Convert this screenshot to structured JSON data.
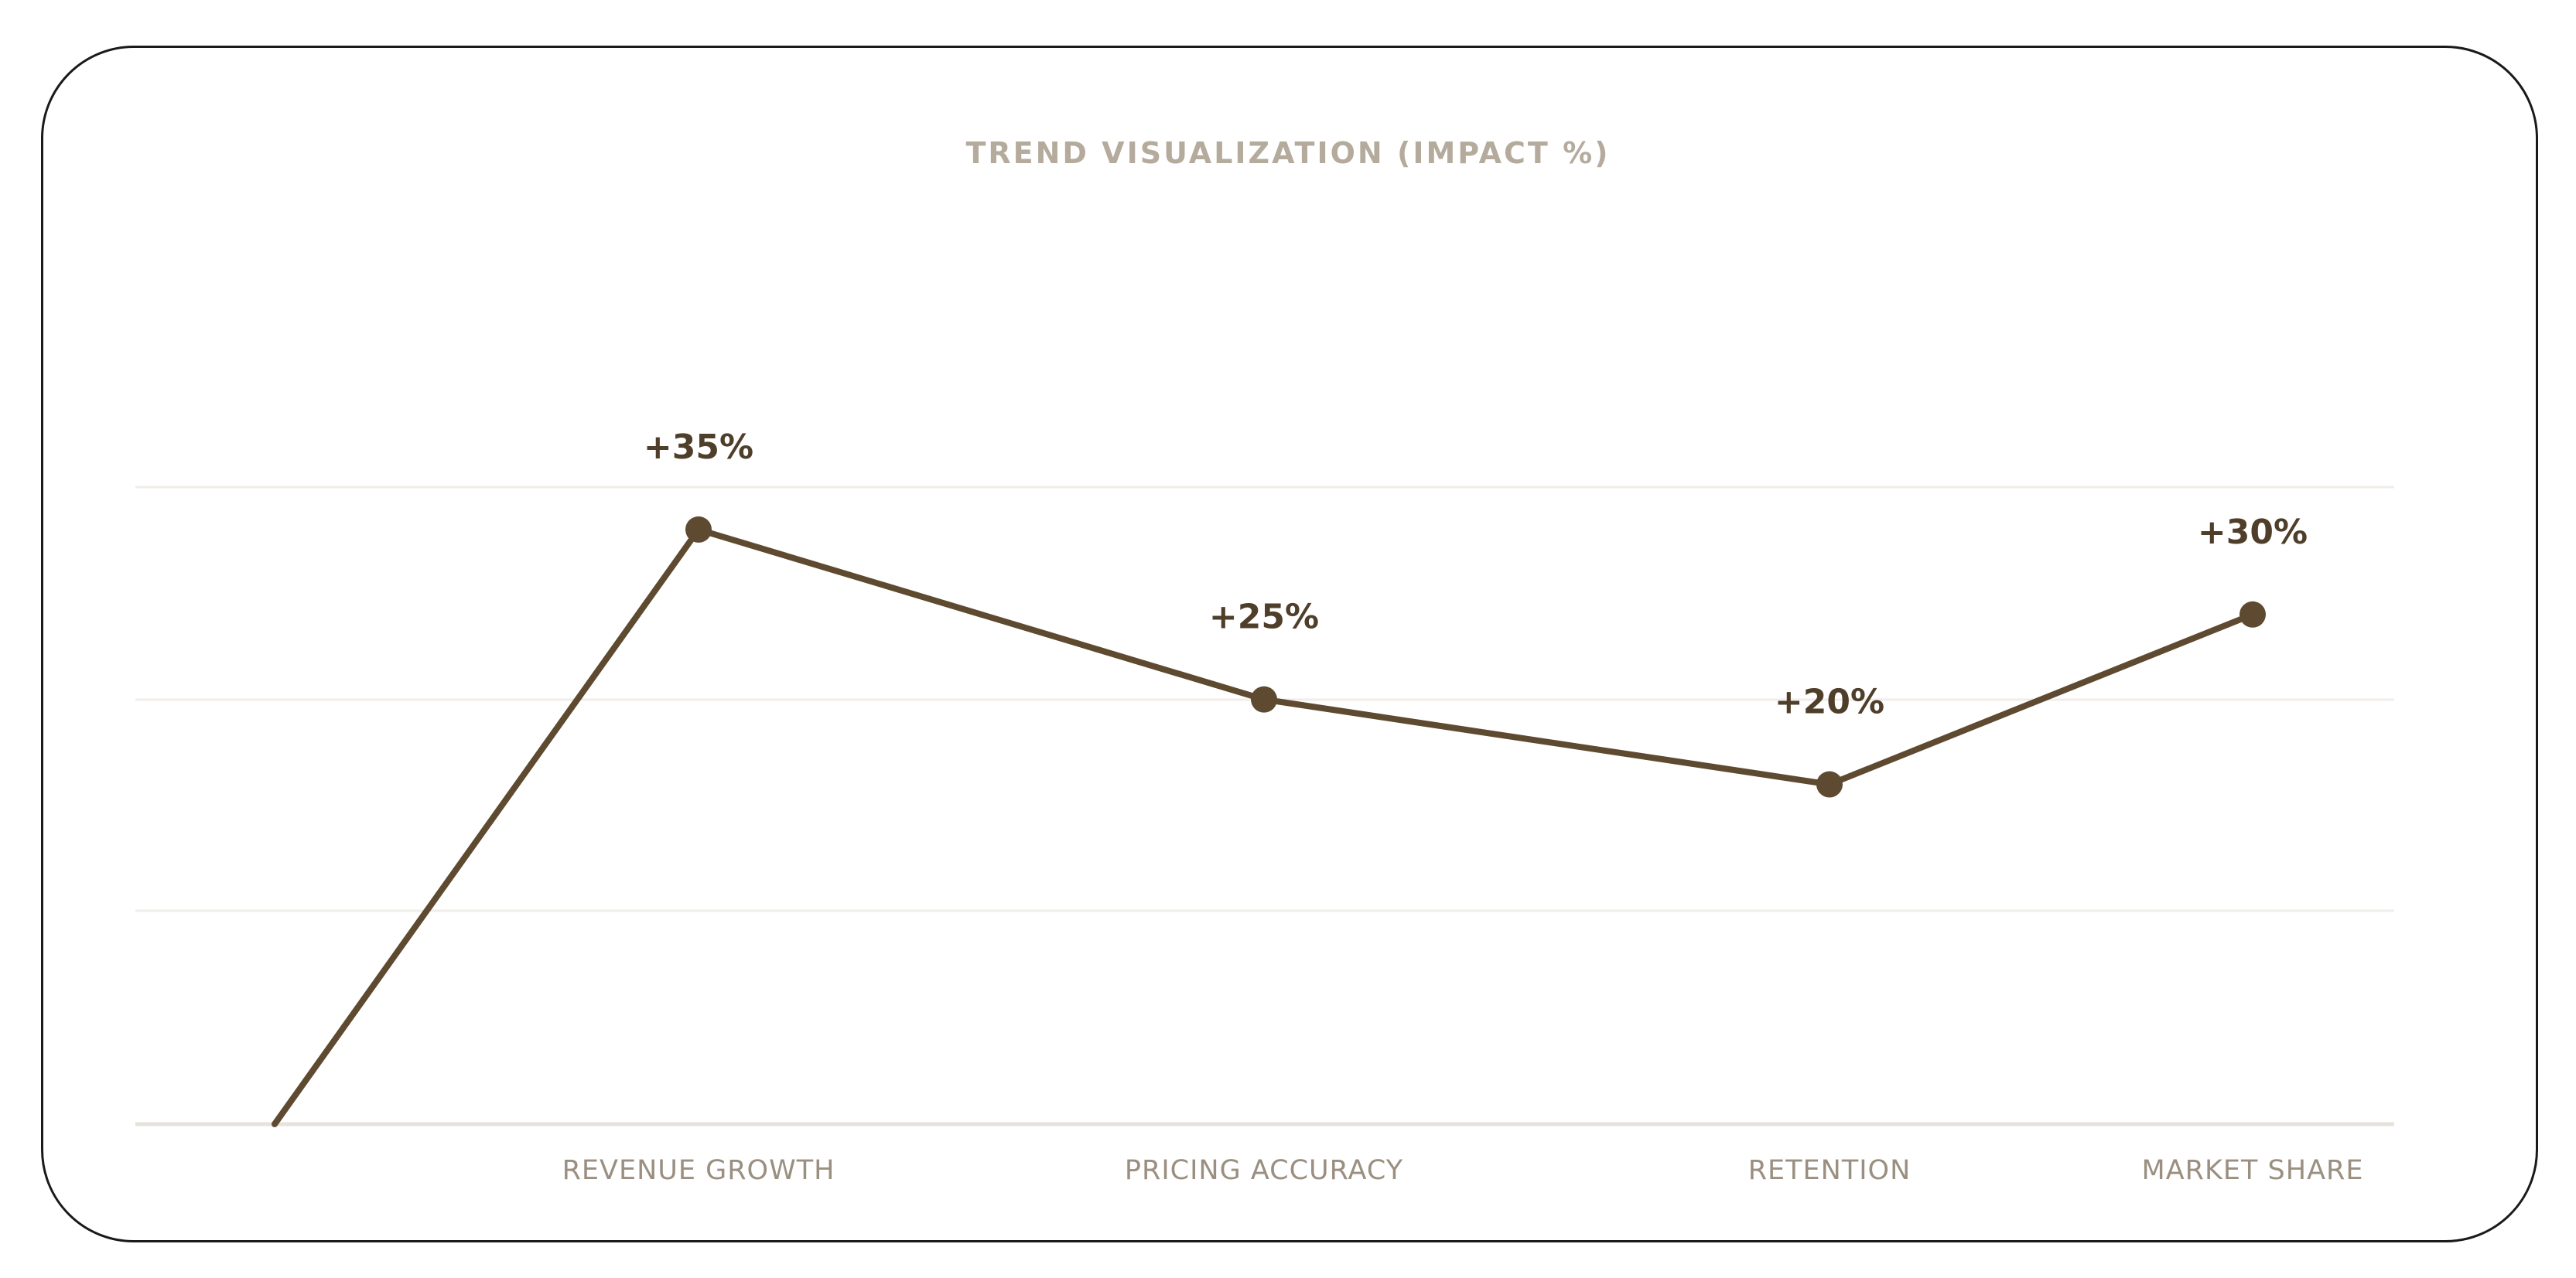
{
  "chart_data": {
    "type": "line",
    "title": "TREND VISUALIZATION (IMPACT %)",
    "categories": [
      "",
      "REVENUE GROWTH",
      "PRICING ACCURACY",
      "RETENTION",
      "MARKET SHARE"
    ],
    "values": [
      0,
      35,
      25,
      20,
      30
    ],
    "data_labels": [
      "",
      "+35%",
      "+25%",
      "+20%",
      "+30%"
    ],
    "ylim": [
      0,
      37.5
    ],
    "grid": true,
    "legend": "none"
  },
  "colors": {
    "line": "#5e4a30",
    "title": "#b5ab9d",
    "axis_label": "#9a8f80",
    "data_label": "#4f3f2a",
    "grid": "#f1eeea",
    "baseline": "#e6e2dc",
    "border": "#1a1a1a"
  }
}
